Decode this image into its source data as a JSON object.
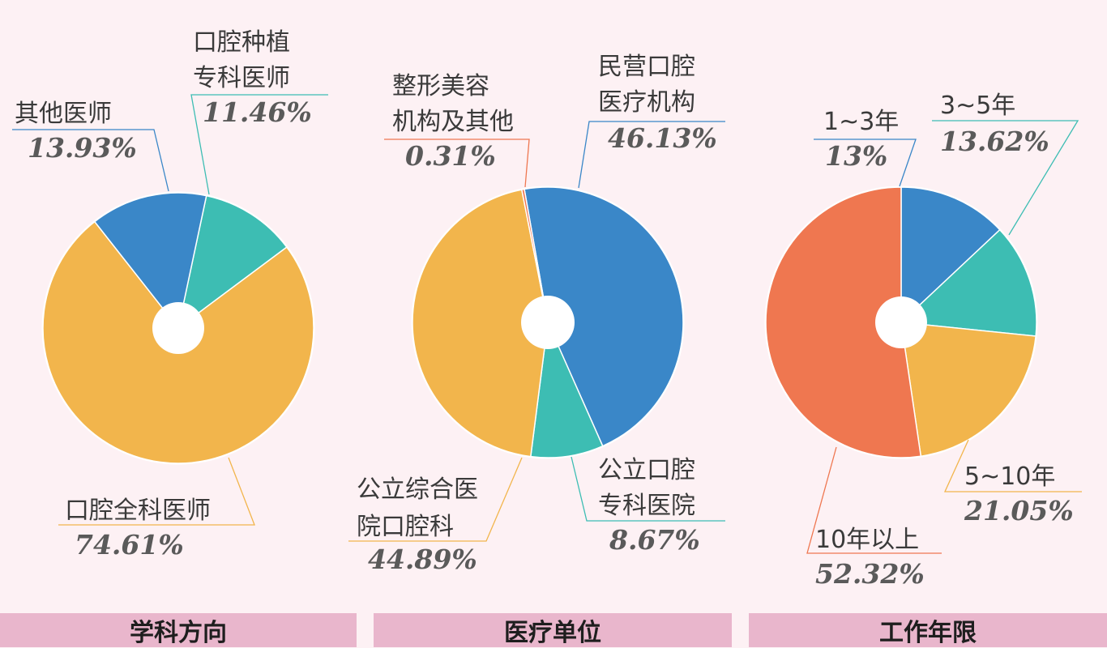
{
  "chart_data": [
    {
      "type": "pie",
      "title": "学科方向",
      "slices": [
        {
          "name": [
            "口腔种植",
            "专科医师"
          ],
          "value": 11.46,
          "label": "11.46%",
          "color": "#3dbdb3"
        },
        {
          "name": [
            "口腔全科医师"
          ],
          "value": 74.61,
          "label": "74.61%",
          "color": "#f2b54c"
        },
        {
          "name": [
            "其他医师"
          ],
          "value": 13.93,
          "label": "13.93%",
          "color": "#3a87c8"
        }
      ]
    },
    {
      "type": "pie",
      "title": "医疗单位",
      "slices": [
        {
          "name": [
            "民营口腔",
            "医疗机构"
          ],
          "value": 46.13,
          "label": "46.13%",
          "color": "#3a87c8"
        },
        {
          "name": [
            "公立口腔",
            "专科医院"
          ],
          "value": 8.67,
          "label": "8.67%",
          "color": "#3dbdb3"
        },
        {
          "name": [
            "公立综合医",
            "院口腔科"
          ],
          "value": 44.89,
          "label": "44.89%",
          "color": "#f2b54c"
        },
        {
          "name": [
            "整形美容",
            "机构及其他"
          ],
          "value": 0.31,
          "label": "0.31%",
          "color": "#ef7750"
        }
      ]
    },
    {
      "type": "pie",
      "title": "工作年限",
      "slices": [
        {
          "name": [
            "1~3年"
          ],
          "value": 13,
          "label": "13%",
          "color": "#3a87c8"
        },
        {
          "name": [
            "3~5年"
          ],
          "value": 13.62,
          "label": "13.62%",
          "color": "#3dbdb3"
        },
        {
          "name": [
            "5~10年"
          ],
          "value": 21.05,
          "label": "21.05%",
          "color": "#f2b54c"
        },
        {
          "name": [
            "10年以上"
          ],
          "value": 52.32,
          "label": "52.32%",
          "color": "#ef7750"
        }
      ]
    }
  ]
}
